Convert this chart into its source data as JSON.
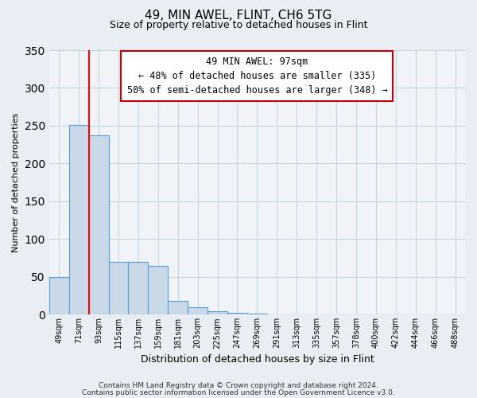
{
  "title": "49, MIN AWEL, FLINT, CH6 5TG",
  "subtitle": "Size of property relative to detached houses in Flint",
  "xlabel": "Distribution of detached houses by size in Flint",
  "ylabel": "Number of detached properties",
  "bar_labels": [
    "49sqm",
    "71sqm",
    "93sqm",
    "115sqm",
    "137sqm",
    "159sqm",
    "181sqm",
    "203sqm",
    "225sqm",
    "247sqm",
    "269sqm",
    "291sqm",
    "313sqm",
    "335sqm",
    "357sqm",
    "378sqm",
    "400sqm",
    "422sqm",
    "444sqm",
    "466sqm",
    "488sqm"
  ],
  "bar_values": [
    50,
    251,
    237,
    70,
    70,
    65,
    18,
    10,
    5,
    2,
    1,
    0,
    0,
    0,
    0,
    0,
    0,
    0,
    0,
    0,
    0
  ],
  "bar_color": "#c9d9e8",
  "bar_edge_color": "#5b9bd5",
  "red_line_x": 1.5,
  "annotation_title": "49 MIN AWEL: 97sqm",
  "annotation_line1": "← 48% of detached houses are smaller (335)",
  "annotation_line2": "50% of semi-detached houses are larger (348) →",
  "ylim": [
    0,
    350
  ],
  "yticks": [
    0,
    50,
    100,
    150,
    200,
    250,
    300,
    350
  ],
  "footnote1": "Contains HM Land Registry data © Crown copyright and database right 2024.",
  "footnote2": "Contains public sector information licensed under the Open Government Licence v3.0.",
  "bg_color": "#e8eef4",
  "plot_bg_color": "#f0f4f8",
  "grid_color": "#c8d4e0"
}
